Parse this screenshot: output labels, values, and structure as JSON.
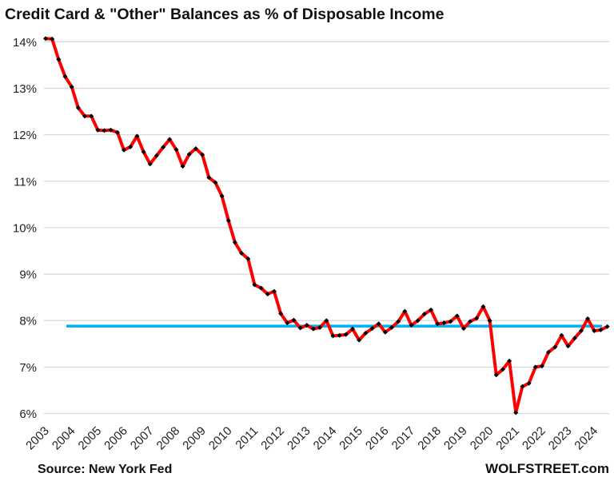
{
  "chart_data": {
    "type": "line",
    "title": "Credit Card & \"Other\" Balances as % of Disposable Income",
    "xlabel": "",
    "ylabel": "",
    "ylim": [
      6,
      14
    ],
    "yticks": [
      "6%",
      "7%",
      "8%",
      "9%",
      "10%",
      "11%",
      "12%",
      "13%",
      "14%"
    ],
    "ytick_values": [
      6,
      7,
      8,
      9,
      10,
      11,
      12,
      13,
      14
    ],
    "xticks": [
      "2003",
      "2004",
      "2005",
      "2006",
      "2007",
      "2008",
      "2009",
      "2010",
      "2011",
      "2012",
      "2013",
      "2014",
      "2015",
      "2016",
      "2017",
      "2018",
      "2019",
      "2020",
      "2021",
      "2022",
      "2023",
      "2024"
    ],
    "grid": true,
    "frequency": "quarterly",
    "start": "2003 Q1",
    "series": [
      {
        "color": "#ff0000",
        "marker_color": "#000000",
        "values": [
          14.07,
          14.06,
          13.62,
          13.25,
          13.03,
          12.58,
          12.4,
          12.4,
          12.1,
          12.09,
          12.1,
          12.05,
          11.67,
          11.74,
          11.97,
          11.63,
          11.37,
          11.55,
          11.73,
          11.9,
          11.68,
          11.32,
          11.58,
          11.7,
          11.57,
          11.08,
          10.97,
          10.68,
          10.15,
          9.68,
          9.45,
          9.33,
          8.77,
          8.7,
          8.57,
          8.63,
          8.15,
          7.95,
          8.01,
          7.84,
          7.9,
          7.82,
          7.85,
          8.0,
          7.67,
          7.68,
          7.7,
          7.82,
          7.58,
          7.73,
          7.83,
          7.93,
          7.75,
          7.85,
          7.98,
          8.2,
          7.9,
          8.0,
          8.14,
          8.23,
          7.93,
          7.95,
          7.98,
          8.1,
          7.83,
          7.98,
          8.05,
          8.3,
          8.0,
          6.83,
          6.95,
          7.13,
          6.02,
          6.58,
          6.65,
          7.0,
          7.02,
          7.32,
          7.43,
          7.68,
          7.45,
          7.62,
          7.78,
          8.04,
          7.78,
          7.8,
          7.87
        ]
      },
      {
        "type": "reference-line",
        "color": "#00b0f0",
        "value": 7.88
      }
    ],
    "source": "Source: New York Fed",
    "watermark": "WOLFSTREET.com"
  }
}
